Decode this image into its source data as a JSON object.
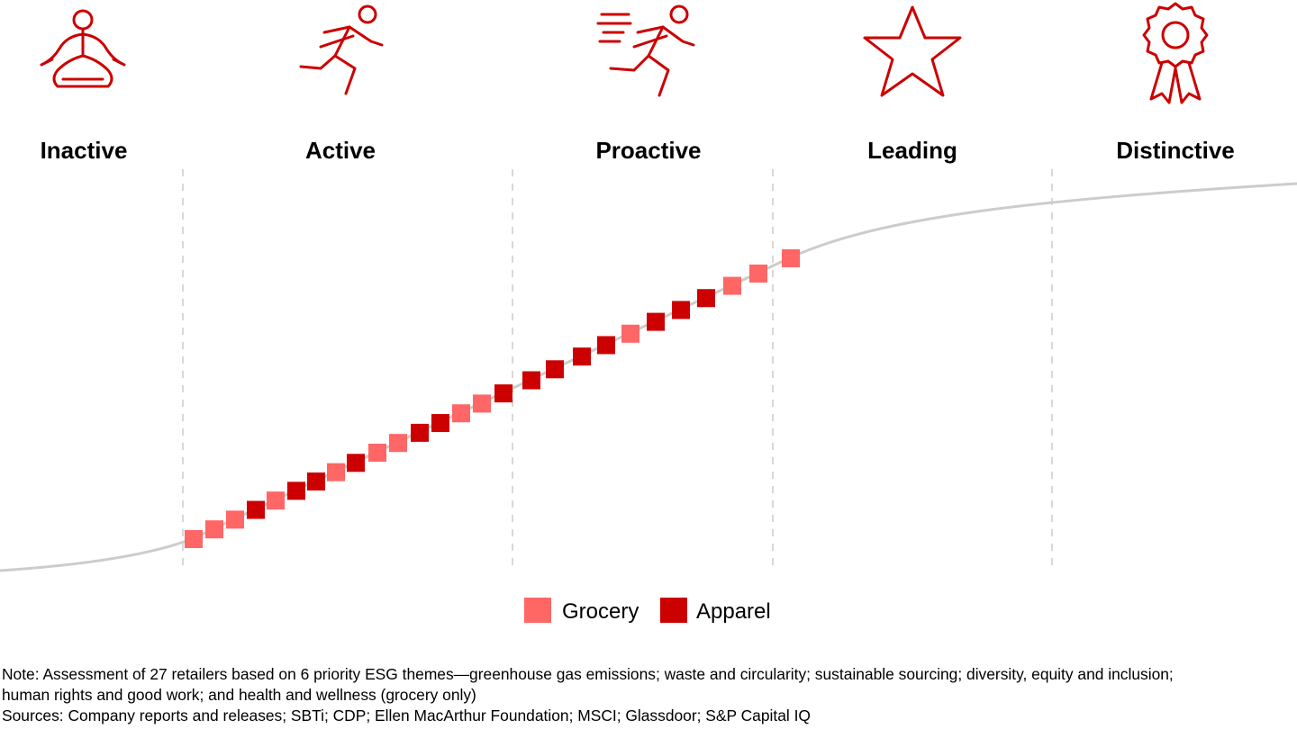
{
  "chart_data": {
    "type": "scatter",
    "stages": [
      "Inactive",
      "Active",
      "Proactive",
      "Leading",
      "Distinctive"
    ],
    "stage_icons": [
      "meditation-icon",
      "running-person-icon",
      "sprinting-person-icon",
      "star-icon",
      "award-ribbon-icon"
    ],
    "series": [
      {
        "name": "Grocery",
        "color": "#ff6666"
      },
      {
        "name": "Apparel",
        "color": "#cc0000"
      }
    ],
    "retailers": [
      "Grocery",
      "Grocery",
      "Grocery",
      "Apparel",
      "Grocery",
      "Apparel",
      "Apparel",
      "Grocery",
      "Apparel",
      "Grocery",
      "Grocery",
      "Apparel",
      "Apparel",
      "Grocery",
      "Grocery",
      "Apparel",
      "Apparel",
      "Apparel",
      "Apparel",
      "Apparel",
      "Grocery",
      "Apparel",
      "Apparel",
      "Apparel",
      "Grocery",
      "Grocery",
      "Grocery"
    ],
    "curve_color": "#cccccc",
    "divider_color": "#cccccc"
  },
  "notes": {
    "line1": "Note: Assessment of 27 retailers based on 6 priority ESG themes—greenhouse gas emissions; waste and circularity; sustainable sourcing; diversity, equity and inclusion;",
    "line2": "human rights and good work; and health and wellness (grocery only)",
    "line3": "Sources: Company reports and releases; SBTi; CDP; Ellen MacArthur Foundation; MSCI; Glassdoor; S&P Capital IQ"
  }
}
